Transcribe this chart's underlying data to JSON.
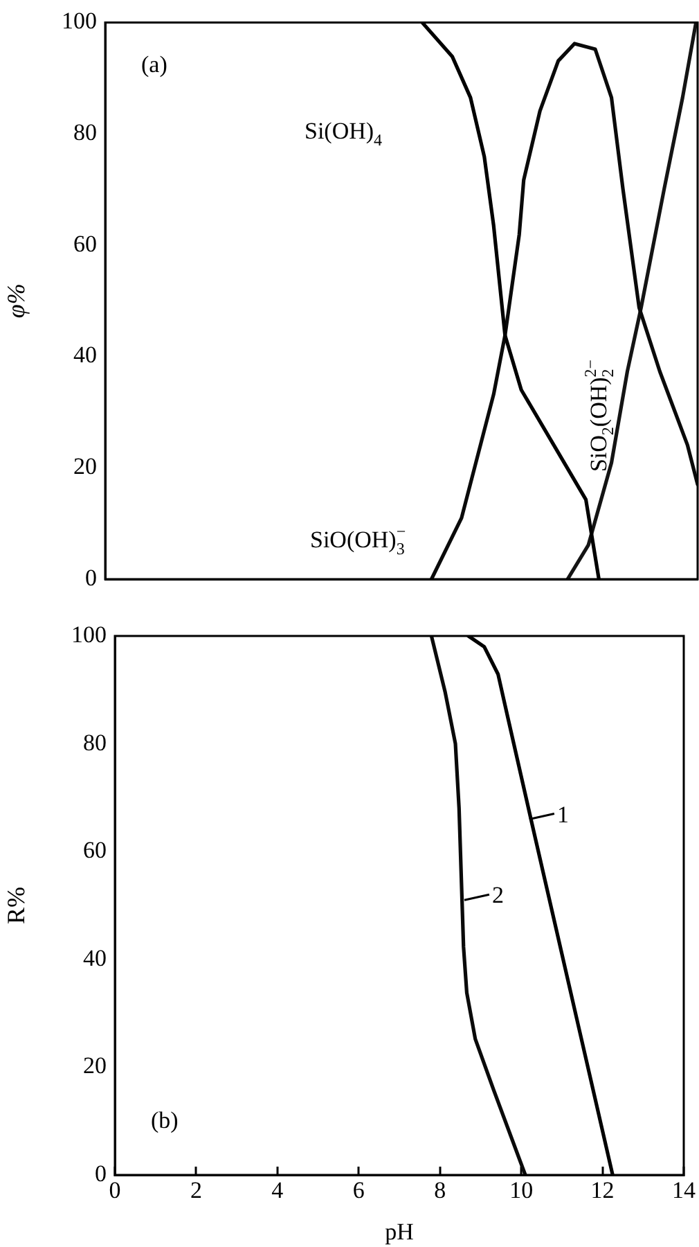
{
  "chart_data": [
    {
      "type": "line",
      "ylabel": "φ%",
      "xlim": [
        -0.24,
        14.34
      ],
      "xticks": [
        0,
        2,
        4,
        6,
        8,
        10,
        12,
        14
      ],
      "ylim": [
        0,
        100
      ],
      "yticks": [
        0,
        20,
        40,
        60,
        80,
        100
      ],
      "tick_labels": "y",
      "grid": false,
      "legend": false,
      "marker": "none",
      "line_style": "solid",
      "series": [
        {
          "color": "#000000",
          "x": [
            7.56,
            8.3,
            8.75,
            9.09,
            9.32,
            9.6,
            10,
            10.8,
            11.59,
            11.91
          ],
          "values": [
            100,
            93.9,
            86.5,
            75.9,
            63.5,
            43.8,
            34,
            24.1,
            14.3,
            0
          ]
        },
        {
          "color": "#0a0a0a",
          "x": [
            7.79,
            8.53,
            9.32,
            9.6,
            9.95,
            10.06,
            10.46,
            10.91,
            11.31,
            11.82,
            12.22,
            12.5,
            12.9,
            13.41,
            14.09,
            14.34
          ],
          "values": [
            0,
            11,
            33.2,
            43.8,
            61.9,
            71.7,
            84.1,
            93.1,
            96.2,
            95.2,
            86.5,
            70.2,
            48.8,
            37.3,
            24.1,
            17
          ]
        },
        {
          "color": "#141414",
          "x": [
            11.14,
            11.65,
            12.22,
            12.61,
            12.95,
            13.52,
            13.97,
            14.3
          ],
          "values": [
            0,
            6.1,
            20.9,
            37.3,
            48.8,
            70.2,
            86.5,
            100
          ]
        }
      ],
      "annotations": [
        "(a)",
        "Si(OH)$_{4}$",
        "SiO(OH)$_{3}$$^{−}$",
        "SiO$_{2}$(OH)$_{2}$$^{2−}$"
      ]
    },
    {
      "type": "line",
      "xlabel": "pH",
      "ylabel": "R%",
      "xlim": [
        0,
        14
      ],
      "xticks": [
        0,
        2,
        4,
        6,
        8,
        10,
        12,
        14
      ],
      "ylim": [
        0,
        100
      ],
      "yticks": [
        0,
        20,
        40,
        60,
        80,
        100
      ],
      "grid": false,
      "legend": false,
      "marker": "none",
      "line_style": "solid",
      "series": [
        {
          "color": "#000000",
          "x": [
            8.7,
            9.09,
            9.43,
            9.66,
            10.23,
            10.83,
            11.43,
            12.25
          ],
          "values": [
            100,
            98,
            92.9,
            85.2,
            66.3,
            46.6,
            26.9,
            0
          ]
        },
        {
          "color": "#0a0a0a",
          "x": [
            7.79,
            8.13,
            8.38,
            8.47,
            8.58,
            8.66,
            8.87,
            9.32,
            10.1
          ],
          "values": [
            100,
            89.5,
            80,
            68,
            42.3,
            33.8,
            25.2,
            15.8,
            0
          ]
        }
      ],
      "annotations": [
        "(b)",
        {
          "text": "1",
          "x": 10.2,
          "y": 66
        },
        {
          "text": "2",
          "x": 8.6,
          "y": 51
        }
      ]
    }
  ]
}
